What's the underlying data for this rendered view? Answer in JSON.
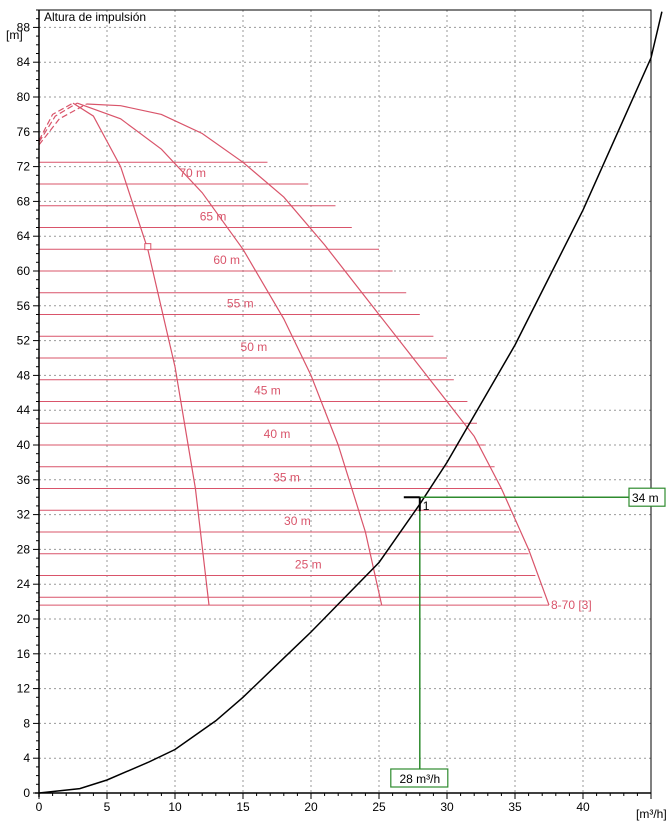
{
  "chart_data": {
    "type": "line",
    "title": "Altura de impulsión",
    "ylabel": "[m]",
    "xlabel": "[m³/h]",
    "xlim": [
      0,
      45
    ],
    "ylim": [
      0,
      90
    ],
    "xticks": [
      0,
      5,
      10,
      15,
      20,
      25,
      30,
      35,
      40
    ],
    "yticks": [
      0,
      4,
      8,
      12,
      16,
      20,
      24,
      28,
      32,
      36,
      40,
      44,
      48,
      52,
      56,
      60,
      64,
      68,
      72,
      76,
      80,
      84,
      88
    ],
    "grid": true,
    "pump_color": "#d9546a",
    "system_color": "#000000",
    "operating_color": "#2e8b2e",
    "pump_label": "8-70 [3]",
    "head_labels": [
      {
        "text": "70 m",
        "x": 11.3,
        "y": 70.8
      },
      {
        "text": "65 m",
        "x": 12.8,
        "y": 65.8
      },
      {
        "text": "60 m",
        "x": 13.8,
        "y": 60.8
      },
      {
        "text": "55 m",
        "x": 14.8,
        "y": 55.8
      },
      {
        "text": "50 m",
        "x": 15.8,
        "y": 50.8
      },
      {
        "text": "45 m",
        "x": 16.8,
        "y": 45.8
      },
      {
        "text": "40 m",
        "x": 17.5,
        "y": 40.8
      },
      {
        "text": "35 m",
        "x": 18.2,
        "y": 35.8
      },
      {
        "text": "30 m",
        "x": 19.0,
        "y": 30.8
      },
      {
        "text": "25 m",
        "x": 19.8,
        "y": 25.8
      }
    ],
    "horizontal_lines": [
      {
        "y": 72.5,
        "x_end": 16.8
      },
      {
        "y": 70.0,
        "x_end": 19.8
      },
      {
        "y": 67.5,
        "x_end": 21.8
      },
      {
        "y": 65.0,
        "x_end": 23.0
      },
      {
        "y": 62.5,
        "x_end": 25.0
      },
      {
        "y": 60.0,
        "x_end": 26.0
      },
      {
        "y": 57.5,
        "x_end": 27.0
      },
      {
        "y": 55.0,
        "x_end": 28.0
      },
      {
        "y": 52.5,
        "x_end": 29.0
      },
      {
        "y": 50.0,
        "x_end": 30.0
      },
      {
        "y": 47.5,
        "x_end": 30.5
      },
      {
        "y": 45.0,
        "x_end": 31.5
      },
      {
        "y": 42.5,
        "x_end": 32.2
      },
      {
        "y": 40.0,
        "x_end": 32.8
      },
      {
        "y": 37.5,
        "x_end": 33.5
      },
      {
        "y": 35.0,
        "x_end": 34.0
      },
      {
        "y": 32.5,
        "x_end": 34.7
      },
      {
        "y": 30.0,
        "x_end": 35.3
      },
      {
        "y": 27.5,
        "x_end": 36.0
      },
      {
        "y": 25.0,
        "x_end": 36.5
      },
      {
        "y": 22.5,
        "x_end": 37.0
      },
      {
        "y": 21.6,
        "x_end": 37.5
      }
    ],
    "series": [
      {
        "role": "pump",
        "values": [
          [
            3.5,
            79.2
          ],
          [
            6,
            79.0
          ],
          [
            9,
            78.0
          ],
          [
            12,
            75.8
          ],
          [
            15,
            72.5
          ],
          [
            18,
            68.5
          ],
          [
            21,
            63.0
          ],
          [
            24,
            57.0
          ],
          [
            27,
            51.0
          ],
          [
            30,
            45.0
          ],
          [
            32,
            41.0
          ],
          [
            34,
            35.0
          ],
          [
            36,
            28.0
          ],
          [
            37.5,
            21.6
          ]
        ]
      },
      {
        "role": "pump",
        "values": [
          [
            2.8,
            79.3
          ],
          [
            6,
            77.5
          ],
          [
            9,
            74.0
          ],
          [
            12,
            69.0
          ],
          [
            15,
            62.5
          ],
          [
            18,
            54.5
          ],
          [
            20,
            48.0
          ],
          [
            22,
            40.0
          ],
          [
            24,
            30.0
          ],
          [
            25.2,
            21.6
          ]
        ]
      },
      {
        "role": "pump",
        "values": [
          [
            2.5,
            79.3
          ],
          [
            4,
            77.8
          ],
          [
            6,
            72.0
          ],
          [
            8,
            62.5
          ],
          [
            10,
            49.0
          ],
          [
            11.5,
            35.0
          ],
          [
            12.5,
            21.6
          ]
        ]
      },
      {
        "role": "pump-dashed",
        "values": [
          [
            0,
            74.5
          ],
          [
            1.5,
            77.5
          ],
          [
            3.5,
            79.2
          ]
        ]
      },
      {
        "role": "pump-dashed",
        "values": [
          [
            0,
            74.8
          ],
          [
            1.2,
            77.8
          ],
          [
            2.8,
            79.3
          ]
        ]
      },
      {
        "role": "pump-dashed",
        "values": [
          [
            0,
            75.0
          ],
          [
            1.0,
            78.0
          ],
          [
            2.5,
            79.3
          ]
        ]
      },
      {
        "role": "system",
        "values": [
          [
            0,
            0
          ],
          [
            3,
            0.5
          ],
          [
            5,
            1.5
          ],
          [
            8,
            3.5
          ],
          [
            10,
            5.0
          ],
          [
            13,
            8.3
          ],
          [
            15,
            11.0
          ],
          [
            18,
            15.5
          ],
          [
            20,
            18.5
          ],
          [
            25,
            26.5
          ],
          [
            28,
            33.2
          ],
          [
            30,
            38.0
          ],
          [
            35,
            51.5
          ],
          [
            40,
            67.0
          ],
          [
            45,
            84.5
          ],
          [
            45.8,
            89.8
          ]
        ]
      }
    ],
    "pump_marker": {
      "x": 8.0,
      "y": 62.8
    },
    "operating_point": {
      "label": "1",
      "x": 28,
      "y": 34,
      "q_label": "28 m³/h",
      "h_label": "34 m"
    }
  }
}
